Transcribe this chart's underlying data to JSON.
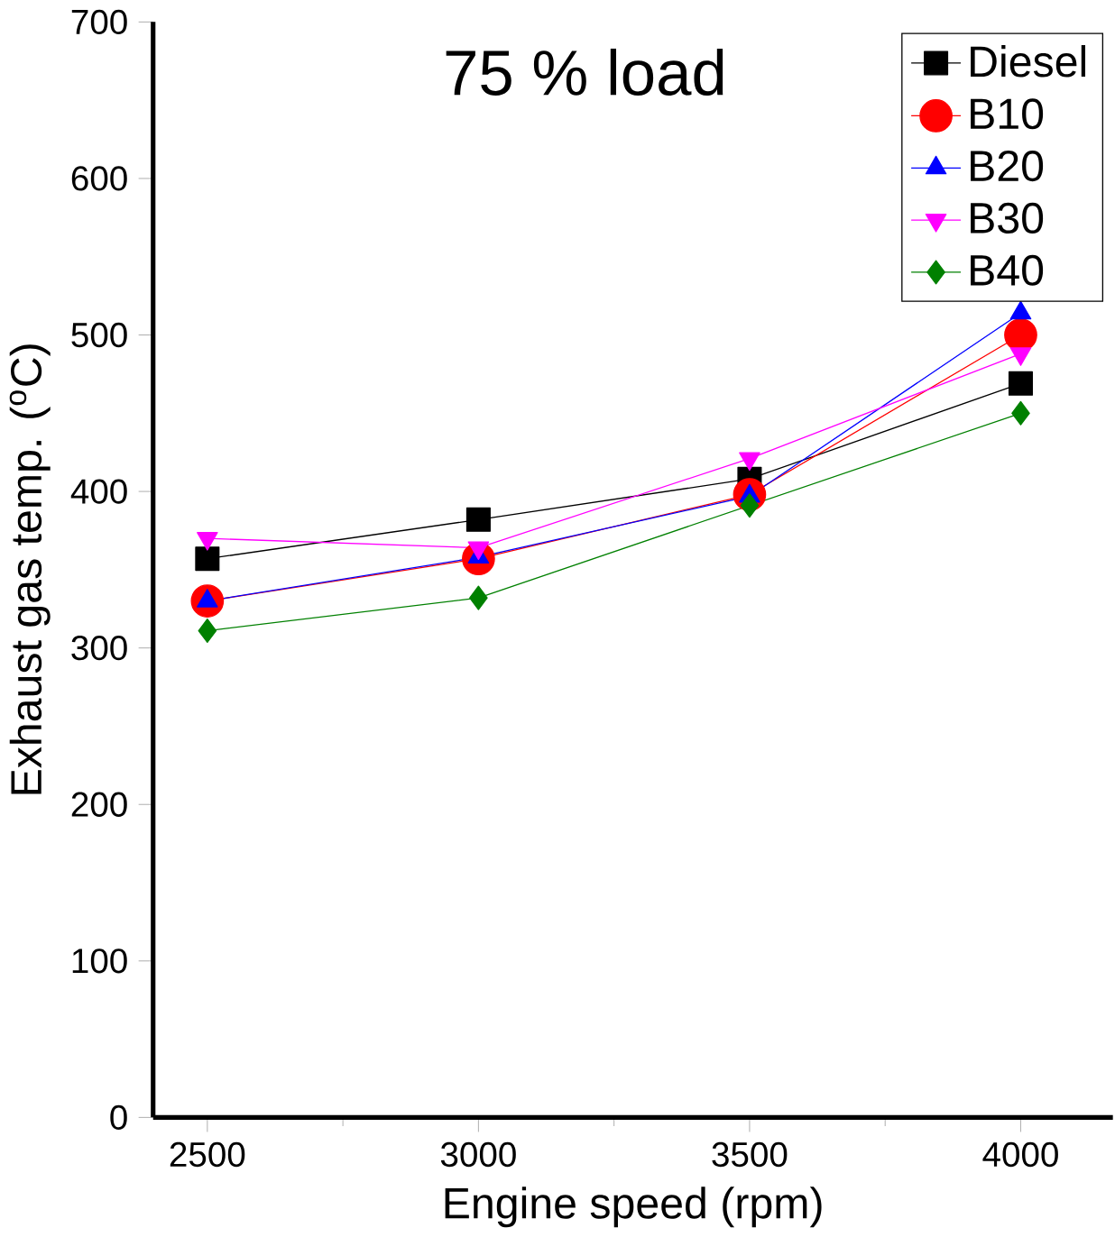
{
  "chart_data": {
    "type": "line",
    "title": "75 % load",
    "xlabel": "Engine speed (rpm)",
    "ylabel": "Exhaust gas temp. ($^{o}$C)",
    "x": [
      2500,
      3000,
      3500,
      4000
    ],
    "xlim": [
      2400,
      4170
    ],
    "xticks": [
      2500,
      3000,
      3500,
      4000
    ],
    "ylim": [
      0,
      700
    ],
    "yticks": [
      0,
      100,
      200,
      300,
      400,
      500,
      600,
      700
    ],
    "legend": "top right",
    "grid": false,
    "series": [
      {
        "name": "Diesel",
        "color": "#000000",
        "marker": "square",
        "values": [
          357,
          382,
          408,
          469
        ]
      },
      {
        "name": "B10",
        "color": "#ff0000",
        "marker": "circle",
        "values": [
          330,
          357,
          398,
          500
        ]
      },
      {
        "name": "B20",
        "color": "#0000ff",
        "marker": "triangle",
        "values": [
          330,
          358,
          397,
          514
        ]
      },
      {
        "name": "B30",
        "color": "#ff00ff",
        "marker": "triangle down",
        "values": [
          370,
          364,
          421,
          488
        ]
      },
      {
        "name": "B40",
        "color": "#008000",
        "marker": "diamond",
        "values": [
          311,
          332,
          391,
          450
        ]
      }
    ]
  }
}
